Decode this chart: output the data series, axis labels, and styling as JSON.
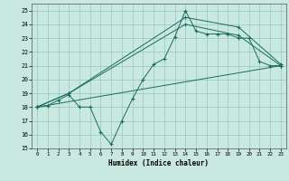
{
  "title": "",
  "xlabel": "Humidex (Indice chaleur)",
  "xlim": [
    -0.5,
    23.5
  ],
  "ylim": [
    15,
    25.5
  ],
  "xticks": [
    0,
    1,
    2,
    3,
    4,
    5,
    6,
    7,
    8,
    9,
    10,
    11,
    12,
    13,
    14,
    15,
    16,
    17,
    18,
    19,
    20,
    21,
    22,
    23
  ],
  "yticks": [
    15,
    16,
    17,
    18,
    19,
    20,
    21,
    22,
    23,
    24,
    25
  ],
  "bg_color": "#c8e8e0",
  "grid_color": "#98c8be",
  "line_color": "#1a6b60",
  "line1_x": [
    0,
    1,
    2,
    3,
    4,
    5,
    6,
    7,
    8,
    9,
    10,
    11,
    12,
    13,
    14,
    15,
    16,
    17,
    18,
    19,
    20,
    21,
    22,
    23
  ],
  "line1_y": [
    18.0,
    18.1,
    18.5,
    18.9,
    18.0,
    18.0,
    16.2,
    15.3,
    17.0,
    18.6,
    20.0,
    21.1,
    21.5,
    23.1,
    25.0,
    23.5,
    23.3,
    23.3,
    23.3,
    23.0,
    23.0,
    21.3,
    21.0,
    21.0
  ],
  "line2_x": [
    0,
    3,
    14,
    19,
    23
  ],
  "line2_y": [
    18.0,
    19.0,
    24.5,
    23.8,
    21.1
  ],
  "line3_x": [
    0,
    3,
    14,
    19,
    23
  ],
  "line3_y": [
    18.0,
    19.0,
    24.0,
    23.2,
    21.0
  ],
  "line4_x": [
    0,
    23
  ],
  "line4_y": [
    18.0,
    21.0
  ]
}
